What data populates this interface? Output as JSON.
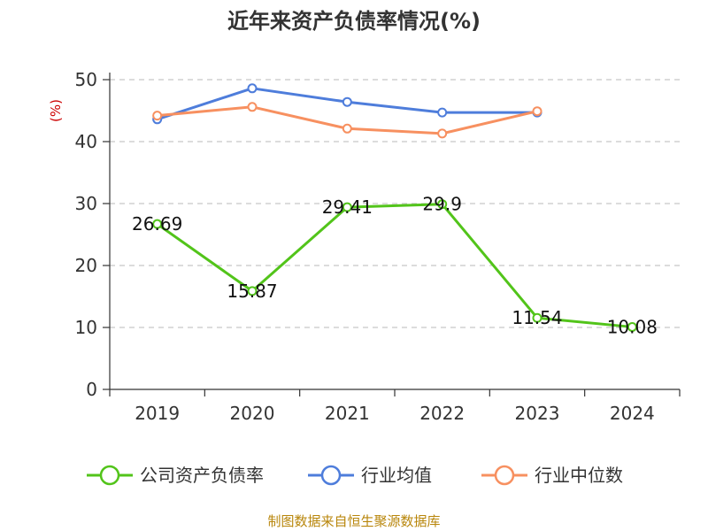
{
  "chart_data": {
    "type": "line",
    "title": "近年来资产负债率情况(%)",
    "ylabel": "(%)",
    "xlabel": "",
    "ylim": [
      0,
      50
    ],
    "yticks": [
      0,
      10,
      20,
      30,
      40,
      50
    ],
    "categories": [
      "2019",
      "2020",
      "2021",
      "2022",
      "2023",
      "2024"
    ],
    "grid": true,
    "legend_position": "bottom",
    "series": [
      {
        "name": "公司资产负债率",
        "color": "#52c41a",
        "values": [
          26.69,
          15.87,
          29.41,
          29.9,
          11.54,
          10.08
        ],
        "labels": [
          "26.69",
          "15.87",
          "29.41",
          "29.9",
          "11.54",
          "10.08"
        ]
      },
      {
        "name": "行业均值",
        "color": "#4e7ddb",
        "values": [
          43.6,
          48.6,
          46.4,
          44.7,
          44.7,
          null
        ]
      },
      {
        "name": "行业中位数",
        "color": "#f79060",
        "values": [
          44.2,
          45.6,
          42.1,
          41.3,
          44.9,
          null
        ]
      }
    ],
    "source": "制图数据来自恒生聚源数据库"
  }
}
